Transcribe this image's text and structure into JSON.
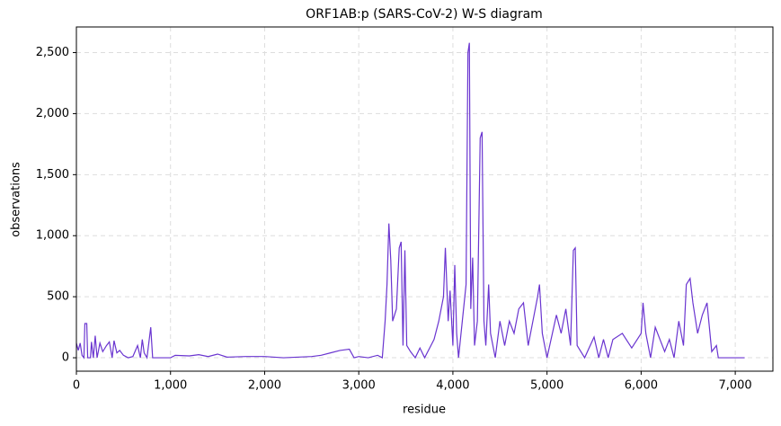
{
  "chart_data": {
    "type": "line",
    "title": "ORF1AB:p (SARS-CoV-2) W-S diagram",
    "x_label": "residue",
    "y_label": "observations",
    "xlim": [
      0,
      7400
    ],
    "ylim": [
      -110,
      2710
    ],
    "xticks": [
      0,
      {
        "value": 1000,
        "label": "1,000"
      },
      {
        "value": 2000,
        "label": "2,000"
      },
      {
        "value": 3000,
        "label": "3,000"
      },
      {
        "value": 4000,
        "label": "4,000"
      },
      {
        "value": 5000,
        "label": "5,000"
      },
      {
        "value": 6000,
        "label": "6,000"
      },
      {
        "value": 7000,
        "label": "7,000"
      }
    ],
    "yticks": [
      0,
      500,
      {
        "value": 1000,
        "label": "1,000"
      },
      {
        "value": 1500,
        "label": "1,500"
      },
      {
        "value": 2000,
        "label": "2,000"
      },
      {
        "value": 2500,
        "label": "2,500"
      }
    ],
    "grid": true,
    "series": [
      {
        "name": "observations",
        "color": "#6a35d0",
        "x": [
          0,
          20,
          40,
          60,
          80,
          90,
          110,
          120,
          150,
          160,
          180,
          200,
          220,
          250,
          280,
          320,
          350,
          380,
          400,
          430,
          460,
          500,
          550,
          600,
          650,
          680,
          700,
          720,
          750,
          790,
          810,
          1000,
          1050,
          1200,
          1300,
          1400,
          1500,
          1600,
          1800,
          2000,
          2200,
          2500,
          2600,
          2700,
          2800,
          2900,
          2950,
          3000,
          3100,
          3200,
          3250,
          3280,
          3300,
          3320,
          3340,
          3360,
          3400,
          3430,
          3450,
          3470,
          3490,
          3510,
          3550,
          3600,
          3650,
          3700,
          3800,
          3850,
          3900,
          3920,
          3950,
          3970,
          4000,
          4020,
          4040,
          4060,
          4100,
          4140,
          4160,
          4175,
          4190,
          4210,
          4230,
          4260,
          4290,
          4310,
          4330,
          4350,
          4380,
          4400,
          4450,
          4500,
          4550,
          4600,
          4650,
          4700,
          4750,
          4800,
          4850,
          4900,
          4920,
          4950,
          5000,
          5100,
          5150,
          5200,
          5250,
          5280,
          5300,
          5320,
          5400,
          5500,
          5550,
          5600,
          5650,
          5700,
          5800,
          5900,
          6000,
          6020,
          6050,
          6100,
          6150,
          6200,
          6250,
          6300,
          6350,
          6400,
          6450,
          6480,
          6520,
          6550,
          6600,
          6650,
          6700,
          6750,
          6800,
          6820,
          7000,
          7100
        ],
        "values": [
          120,
          60,
          120,
          20,
          0,
          280,
          280,
          0,
          0,
          130,
          0,
          180,
          0,
          120,
          50,
          100,
          130,
          0,
          140,
          40,
          60,
          20,
          0,
          10,
          100,
          0,
          150,
          40,
          0,
          250,
          0,
          0,
          20,
          15,
          25,
          10,
          30,
          5,
          10,
          10,
          0,
          10,
          20,
          40,
          60,
          70,
          0,
          10,
          0,
          20,
          0,
          300,
          600,
          1100,
          800,
          300,
          400,
          900,
          950,
          100,
          880,
          100,
          50,
          0,
          80,
          0,
          150,
          300,
          500,
          900,
          300,
          550,
          100,
          760,
          200,
          0,
          300,
          600,
          2500,
          2580,
          400,
          820,
          100,
          300,
          1800,
          1850,
          300,
          100,
          600,
          200,
          0,
          300,
          100,
          300,
          200,
          400,
          450,
          100,
          300,
          500,
          600,
          200,
          0,
          350,
          200,
          400,
          100,
          880,
          900,
          100,
          0,
          170,
          0,
          150,
          0,
          150,
          200,
          80,
          200,
          450,
          200,
          0,
          250,
          150,
          50,
          150,
          0,
          300,
          100,
          600,
          650,
          450,
          200,
          350,
          450,
          50,
          100,
          0,
          0,
          0
        ]
      }
    ]
  }
}
